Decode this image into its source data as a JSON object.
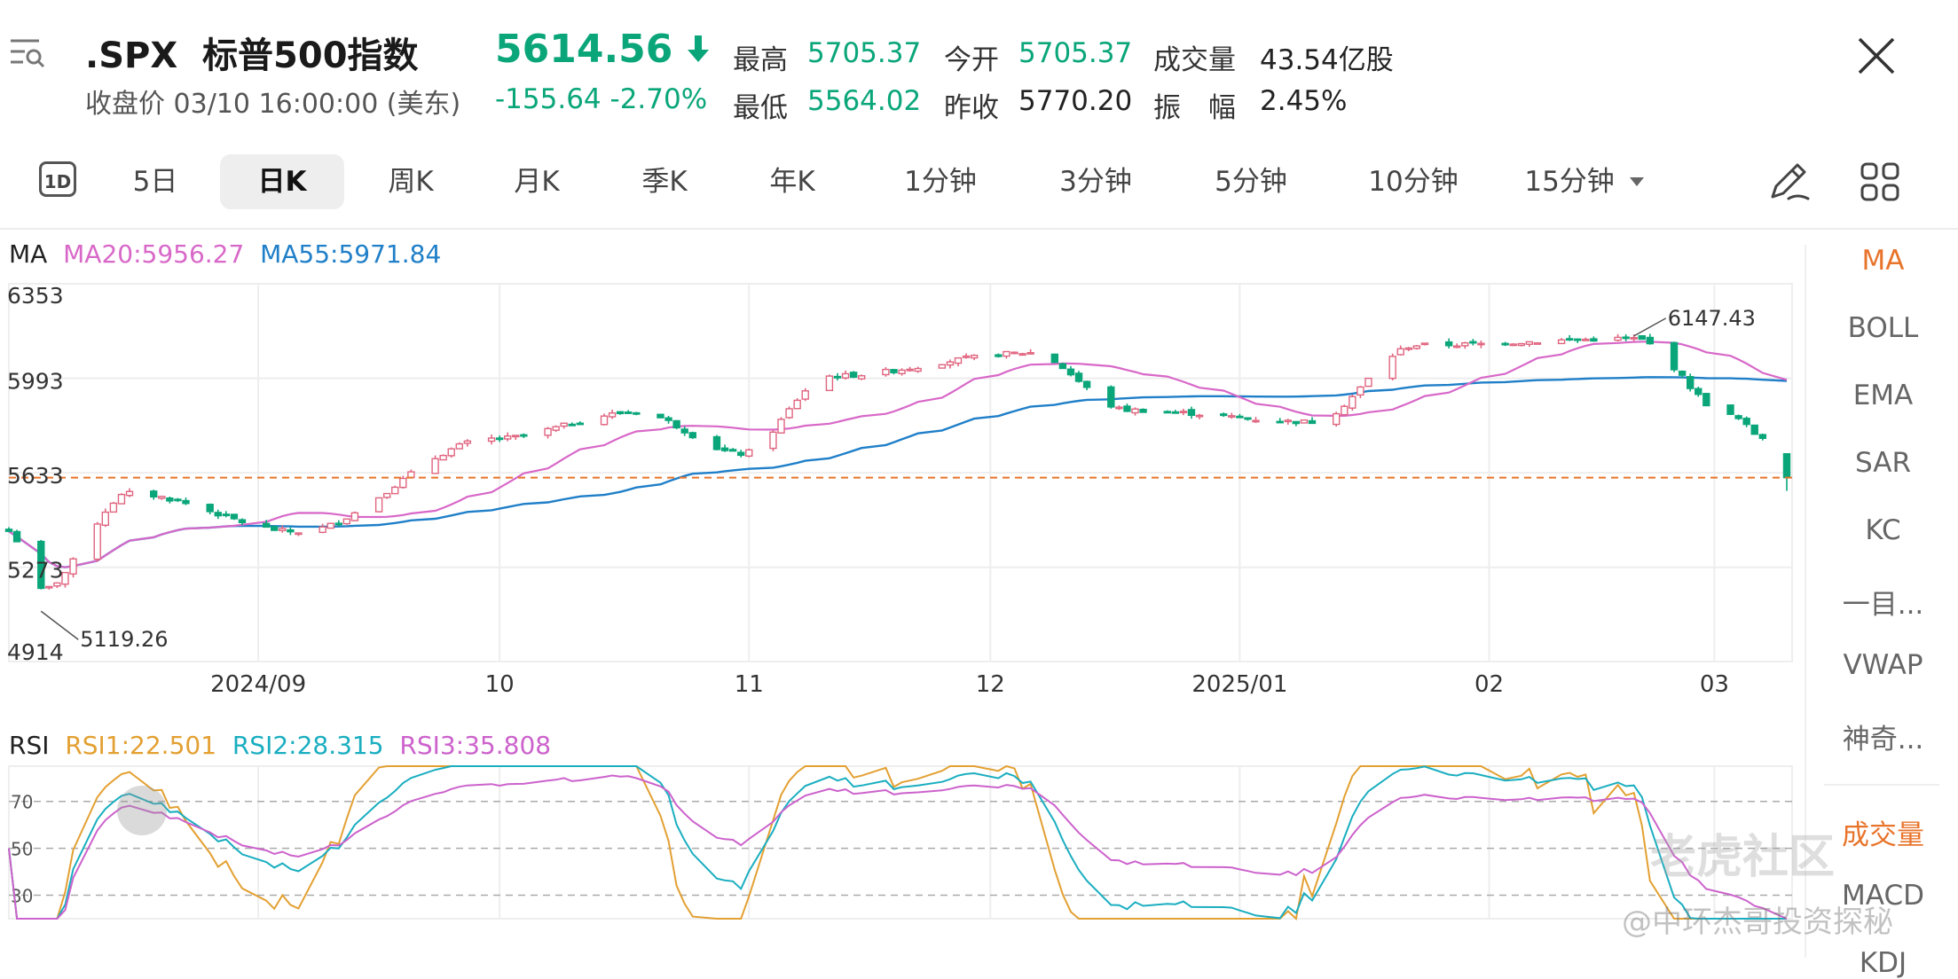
{
  "header": {
    "symbol": ".SPX",
    "name": "标普500指数",
    "close_label": "收盘价",
    "datetime": "03/10 16:00:00 (美东)",
    "price": "5614.56",
    "change": "-155.64",
    "change_pct": "-2.70%",
    "stats": [
      {
        "label": "最高",
        "value": "5705.37"
      },
      {
        "label": "今开",
        "value": "5705.37"
      },
      {
        "label": "成交量",
        "value": "43.54亿股"
      },
      {
        "label": "最低",
        "value": "5564.02"
      },
      {
        "label": "昨收",
        "value": "5770.20"
      },
      {
        "label": "振　幅",
        "value": "2.45%"
      }
    ]
  },
  "tabs": {
    "intraday": "1D",
    "items": [
      "5日",
      "日K",
      "周K",
      "月K",
      "季K",
      "年K",
      "1分钟",
      "3分钟",
      "5分钟",
      "10分钟",
      "15分钟"
    ],
    "active": "日K"
  },
  "indicators": {
    "ma_title": "MA",
    "ma20": "MA20:5956.27",
    "ma55": "MA55:5971.84",
    "rsi_title": "RSI",
    "rsi1": "RSI1:22.501",
    "rsi2": "RSI2:28.315",
    "rsi3": "RSI3:35.808"
  },
  "side_panel": [
    "MA",
    "BOLL",
    "EMA",
    "SAR",
    "KC",
    "一目...",
    "VWAP",
    "神奇...",
    "成交量",
    "MACD",
    "KDJ"
  ],
  "colors": {
    "up": "#e0647f",
    "down": "#0aa67a",
    "ma20": "#d868c8",
    "ma55": "#1f7fc8",
    "rsi1": "#e3a032",
    "rsi2": "#1aaec0",
    "rsi3": "#cc62cc",
    "last_price_line": "#e8742b"
  },
  "watermark": "老虎社区",
  "credit": "@中环杰哥投资探秘",
  "chart_data": [
    {
      "type": "candlestick",
      "y_ticks": [
        6353,
        5993,
        5633,
        5273,
        4914
      ],
      "y_range": [
        4914,
        6353
      ],
      "x_ticks": [
        "2024/09",
        "10",
        "11",
        "12",
        "2025/01",
        "02",
        "03"
      ],
      "annotations": [
        {
          "label": "6147.43",
          "value": 6147.43,
          "date": "2025-02-19"
        },
        {
          "label": "5119.26",
          "value": 5119.26,
          "date": "2024-08-05"
        }
      ],
      "last_price": 5614.56,
      "series": [
        {
          "name": "MA20",
          "value": 5956.27
        },
        {
          "name": "MA55",
          "value": 5971.84
        }
      ],
      "key_points": [
        {
          "date": "2024-08-01",
          "close": 5410
        },
        {
          "date": "2024-08-05",
          "close": 5186
        },
        {
          "date": "2024-08-16",
          "close": 5554
        },
        {
          "date": "2024-09-06",
          "close": 5408
        },
        {
          "date": "2024-09-30",
          "close": 5762
        },
        {
          "date": "2024-10-18",
          "close": 5864
        },
        {
          "date": "2024-10-31",
          "close": 5705
        },
        {
          "date": "2024-11-11",
          "close": 6001
        },
        {
          "date": "2024-12-06",
          "close": 6090
        },
        {
          "date": "2024-12-18",
          "close": 5872
        },
        {
          "date": "2025-01-10",
          "close": 5827
        },
        {
          "date": "2025-01-23",
          "close": 6119
        },
        {
          "date": "2025-02-19",
          "close": 6144
        },
        {
          "date": "2025-03-03",
          "close": 5850
        },
        {
          "date": "2025-03-07",
          "close": 5770
        },
        {
          "date": "2025-03-10",
          "close": 5614.56
        }
      ]
    },
    {
      "type": "line",
      "y_ticks": [
        70,
        50,
        30
      ],
      "y_range": [
        20,
        85
      ],
      "series": [
        {
          "name": "RSI1",
          "value": 22.501
        },
        {
          "name": "RSI2",
          "value": 28.315
        },
        {
          "name": "RSI3",
          "value": 35.808
        }
      ]
    }
  ]
}
